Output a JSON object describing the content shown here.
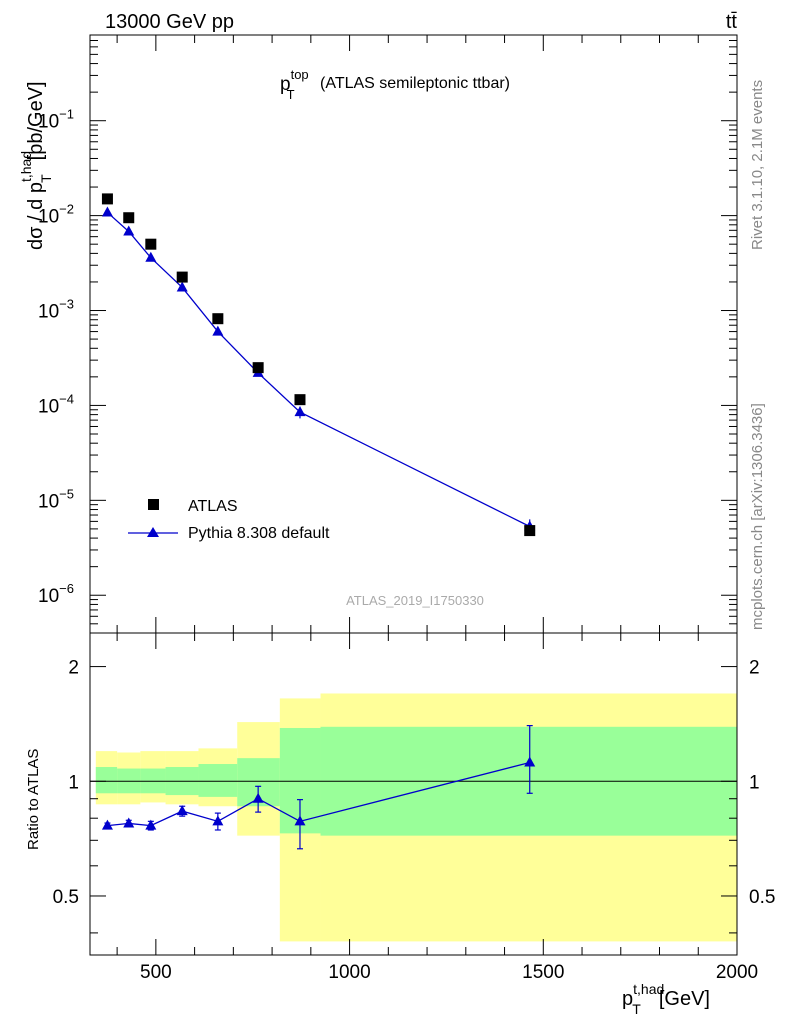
{
  "header": {
    "energy_label": "13000 GeV pp",
    "process_label": "tt̄",
    "side_top": "Rivet 3.1.10,  2.1M events",
    "side_bottom": "mcplots.cern.ch [arXiv:1306.3436]"
  },
  "chart_data": [
    {
      "type": "scatter",
      "panel": "main",
      "title_main": "p",
      "title_sup": "top",
      "title_sub": "T",
      "title_rest": "(ATLAS semileptonic ttbar)",
      "ylabel_main": "dσ / d p",
      "ylabel_sup": "t,had",
      "ylabel_sub": "T",
      "ylabel_unit": "[pb/GeV]",
      "yscale": "log",
      "ylim": [
        4e-07,
        0.8
      ],
      "xlim": [
        330,
        2000
      ],
      "y_ticks": [
        {
          "v": 1e-06,
          "label": "10",
          "exp": "−6"
        },
        {
          "v": 1e-05,
          "label": "10",
          "exp": "−5"
        },
        {
          "v": 0.0001,
          "label": "10",
          "exp": "−4"
        },
        {
          "v": 0.001,
          "label": "10",
          "exp": "−3"
        },
        {
          "v": 0.01,
          "label": "10",
          "exp": "−2"
        },
        {
          "v": 0.1,
          "label": "10",
          "exp": "−1"
        }
      ],
      "watermark": "ATLAS_2019_I1750330",
      "series": [
        {
          "name": "ATLAS",
          "marker": "square",
          "color": "#000000",
          "x": [
            375,
            430,
            487,
            568,
            660,
            764,
            872,
            1465
          ],
          "y": [
            0.015,
            0.0095,
            0.005,
            0.00225,
            0.00082,
            0.00025,
            0.000115,
            4.8e-06
          ]
        },
        {
          "name": "Pythia 8.308 default",
          "marker": "triangle",
          "color": "#0000cc",
          "x": [
            375,
            430,
            487,
            568,
            660,
            764,
            872,
            1465
          ],
          "y": [
            0.0108,
            0.0068,
            0.0036,
            0.00175,
            0.0006,
            0.00022,
            8.5e-05,
            5.3e-06
          ],
          "err_lo": [
            0.0003,
            0.0002,
            0.0001,
            5e-05,
            3e-05,
            1.2e-05,
            1.2e-05,
            8e-07
          ],
          "err_hi": [
            0.0003,
            0.0002,
            0.0001,
            5e-05,
            3e-05,
            1.2e-05,
            1.2e-05,
            1e-06
          ]
        }
      ]
    },
    {
      "type": "line",
      "panel": "ratio",
      "ylabel": "Ratio to ATLAS",
      "xlabel_main": "p",
      "xlabel_sup": "t,had",
      "xlabel_sub": "T",
      "xlabel_unit": "[GeV]",
      "yscale": "log",
      "ylim": [
        0.35,
        2.45
      ],
      "xlim": [
        330,
        2000
      ],
      "x_ticks": [
        {
          "v": 500,
          "label": "500"
        },
        {
          "v": 1000,
          "label": "1000"
        },
        {
          "v": 1500,
          "label": "1500"
        },
        {
          "v": 2000,
          "label": "2000"
        }
      ],
      "y_ticks": [
        {
          "v": 0.5,
          "label": "0.5"
        },
        {
          "v": 1,
          "label": "1"
        },
        {
          "v": 2,
          "label": "2"
        }
      ],
      "bands": {
        "yellow": "#ffff99",
        "green": "#99ff99",
        "bins": [
          {
            "x0": 345,
            "x1": 400,
            "y_lo": 0.87,
            "y_hi": 1.2,
            "g_lo": 0.93,
            "g_hi": 1.09
          },
          {
            "x0": 400,
            "x1": 460,
            "y_lo": 0.87,
            "y_hi": 1.19,
            "g_lo": 0.93,
            "g_hi": 1.08
          },
          {
            "x0": 460,
            "x1": 525,
            "y_lo": 0.88,
            "y_hi": 1.2,
            "g_lo": 0.93,
            "g_hi": 1.08
          },
          {
            "x0": 525,
            "x1": 610,
            "y_lo": 0.87,
            "y_hi": 1.2,
            "g_lo": 0.92,
            "g_hi": 1.09
          },
          {
            "x0": 610,
            "x1": 710,
            "y_lo": 0.86,
            "y_hi": 1.22,
            "g_lo": 0.91,
            "g_hi": 1.11
          },
          {
            "x0": 710,
            "x1": 820,
            "y_lo": 0.72,
            "y_hi": 1.43,
            "g_lo": 0.86,
            "g_hi": 1.15
          },
          {
            "x0": 820,
            "x1": 925,
            "y_lo": 0.38,
            "y_hi": 1.65,
            "g_lo": 0.73,
            "g_hi": 1.38
          },
          {
            "x0": 925,
            "x1": 2000,
            "y_lo": 0.38,
            "y_hi": 1.7,
            "g_lo": 0.72,
            "g_hi": 1.39
          }
        ]
      },
      "reference_line": 1,
      "series": [
        {
          "name": "Pythia 8.308 default",
          "marker": "triangle",
          "color": "#0000cc",
          "x": [
            375,
            430,
            487,
            568,
            660,
            764,
            872,
            1465
          ],
          "y": [
            0.765,
            0.775,
            0.765,
            0.835,
            0.785,
            0.9,
            0.785,
            1.12
          ],
          "err_lo": [
            0.012,
            0.015,
            0.02,
            0.025,
            0.04,
            0.07,
            0.12,
            0.19
          ],
          "err_hi": [
            0.012,
            0.015,
            0.02,
            0.025,
            0.04,
            0.07,
            0.11,
            0.28
          ]
        }
      ]
    }
  ]
}
